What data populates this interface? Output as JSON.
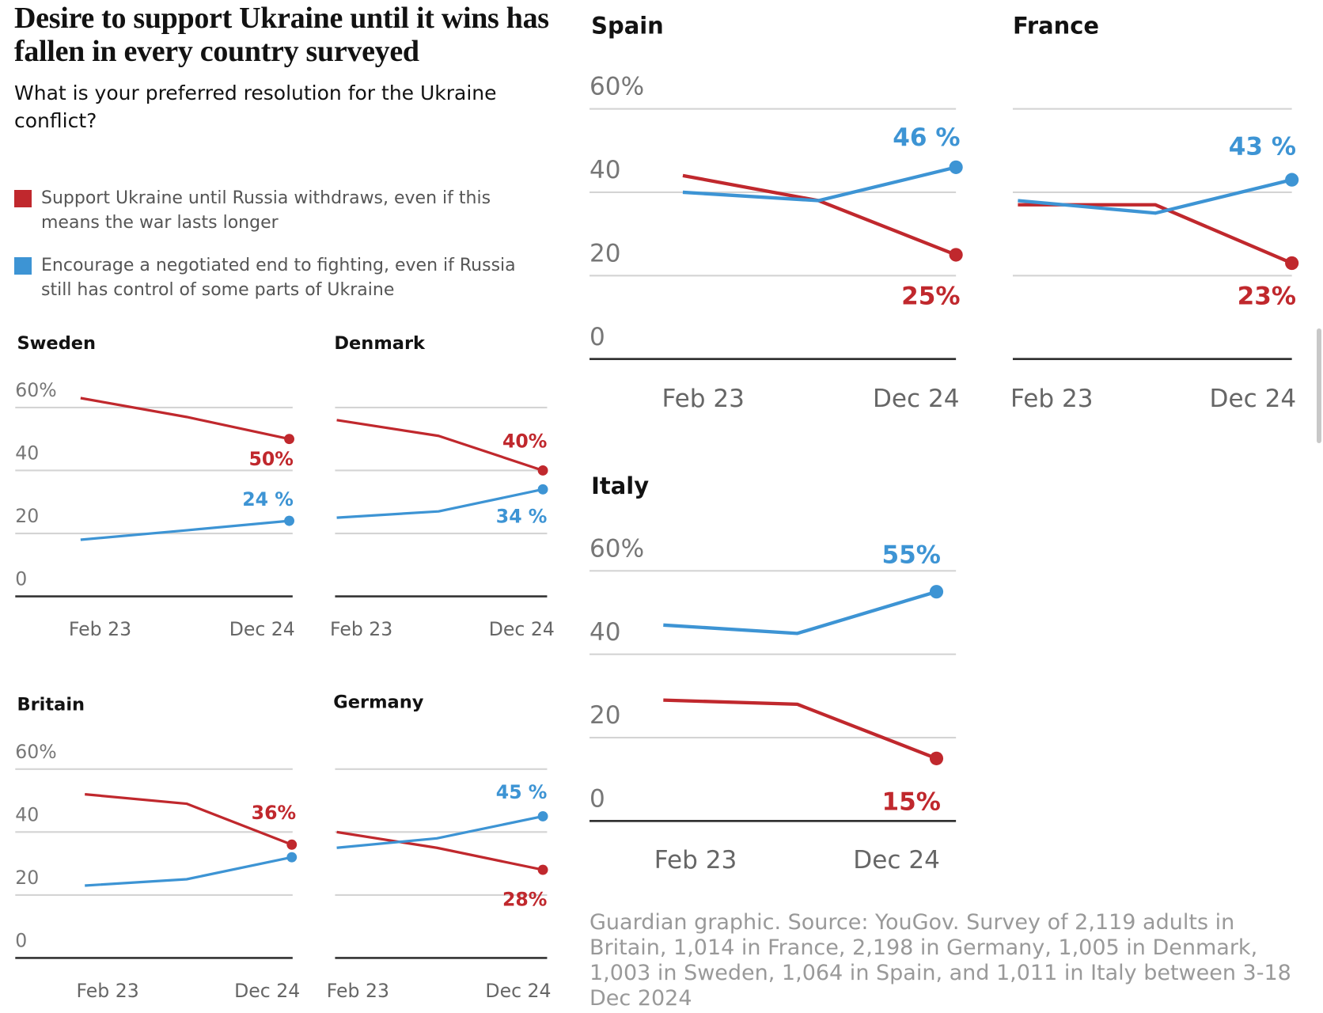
{
  "title": "Desire to support Ukraine until it wins has fallen in every country surveyed",
  "subtitle": "What is your preferred resolution for the Ukraine conflict?",
  "legend": [
    {
      "name": "Support Ukraine until Russia withdraws, even if this means the war lasts longer",
      "color": "#c0282d"
    },
    {
      "name": "Encourage a negotiated end to fighting, even if Russia still has control of some parts of Ukraine",
      "color": "#3d94d4"
    }
  ],
  "source": "Guardian graphic. Source: YouGov. Survey of 2,119 adults in Britain, 1,014 in France, 2,198 in Germany, 1,005 in Denmark, 1,003 in Sweden, 1,064 in Spain, and 1,011 in Italy between 3-18 Dec 2024",
  "chart_data": [
    {
      "type": "line",
      "title": "Sweden",
      "categories": [
        "Feb 23",
        null,
        "Dec 24"
      ],
      "ylim": [
        0,
        60
      ],
      "yticks": [
        0,
        20,
        40,
        {
          "value": 60,
          "label": "60%"
        }
      ],
      "ytick_labels": true,
      "grid": true,
      "series": [
        {
          "color": "#c0282d",
          "values": [
            63,
            57,
            50
          ],
          "value_labels": [
            null,
            null,
            "50%"
          ]
        },
        {
          "color": "#3d94d4",
          "values": [
            18,
            21,
            24
          ],
          "value_labels": [
            null,
            null,
            "24 %"
          ]
        }
      ]
    },
    {
      "type": "line",
      "title": "Denmark",
      "categories": [
        "Feb 23",
        null,
        "Dec 24"
      ],
      "ylim": [
        0,
        60
      ],
      "yticks": [
        0,
        20,
        40,
        60
      ],
      "ytick_labels": false,
      "grid": true,
      "series": [
        {
          "color": "#c0282d",
          "values": [
            56,
            51,
            40
          ],
          "value_labels": [
            null,
            null,
            "40%"
          ]
        },
        {
          "color": "#3d94d4",
          "values": [
            25,
            27,
            34
          ],
          "value_labels": [
            null,
            null,
            "34 %"
          ]
        }
      ]
    },
    {
      "type": "line",
      "title": "Britain",
      "categories": [
        "Feb 23",
        null,
        "Dec 24"
      ],
      "ylim": [
        0,
        60
      ],
      "yticks": [
        0,
        20,
        40,
        {
          "value": 60,
          "label": "60%"
        }
      ],
      "ytick_labels": true,
      "grid": true,
      "series": [
        {
          "color": "#c0282d",
          "values": [
            52,
            49,
            36
          ],
          "value_labels": [
            null,
            null,
            "36%"
          ]
        },
        {
          "color": "#3d94d4",
          "values": [
            23,
            25,
            32
          ],
          "value_labels": [
            null,
            null,
            null
          ]
        }
      ]
    },
    {
      "type": "line",
      "title": "Germany",
      "categories": [
        "Feb 23",
        null,
        "Dec 24"
      ],
      "ylim": [
        0,
        60
      ],
      "yticks": [
        0,
        20,
        40,
        60
      ],
      "ytick_labels": false,
      "grid": true,
      "series": [
        {
          "color": "#c0282d",
          "values": [
            40,
            35,
            28
          ],
          "value_labels": [
            null,
            null,
            "28%"
          ]
        },
        {
          "color": "#3d94d4",
          "values": [
            35,
            38,
            45
          ],
          "value_labels": [
            null,
            null,
            "45 %"
          ]
        }
      ]
    },
    {
      "type": "line",
      "title": "Spain",
      "categories": [
        "Feb 23",
        null,
        "Dec 24"
      ],
      "ylim": [
        0,
        60
      ],
      "yticks": [
        0,
        20,
        40,
        {
          "value": 60,
          "label": "60%"
        }
      ],
      "ytick_labels": true,
      "grid": true,
      "series": [
        {
          "color": "#c0282d",
          "values": [
            44,
            38,
            25
          ],
          "value_labels": [
            null,
            null,
            "25%"
          ]
        },
        {
          "color": "#3d94d4",
          "values": [
            40,
            38,
            46
          ],
          "value_labels": [
            null,
            null,
            "46 %"
          ]
        }
      ]
    },
    {
      "type": "line",
      "title": "France",
      "categories": [
        "Feb 23",
        null,
        "Dec 24"
      ],
      "ylim": [
        0,
        60
      ],
      "yticks": [
        0,
        20,
        40,
        60
      ],
      "ytick_labels": false,
      "grid": true,
      "series": [
        {
          "color": "#c0282d",
          "values": [
            37,
            37,
            23
          ],
          "value_labels": [
            null,
            null,
            "23%"
          ]
        },
        {
          "color": "#3d94d4",
          "values": [
            38,
            35,
            43
          ],
          "value_labels": [
            null,
            null,
            "43 %"
          ]
        }
      ]
    },
    {
      "type": "line",
      "title": "Italy",
      "categories": [
        "Feb 23",
        null,
        "Dec 24"
      ],
      "ylim": [
        0,
        60
      ],
      "yticks": [
        0,
        20,
        40,
        {
          "value": 60,
          "label": "60%"
        }
      ],
      "ytick_labels": true,
      "grid": true,
      "series": [
        {
          "color": "#c0282d",
          "values": [
            29,
            28,
            15
          ],
          "value_labels": [
            null,
            null,
            "15%"
          ]
        },
        {
          "color": "#3d94d4",
          "values": [
            47,
            45,
            55
          ],
          "value_labels": [
            null,
            null,
            "55%"
          ]
        }
      ]
    }
  ]
}
